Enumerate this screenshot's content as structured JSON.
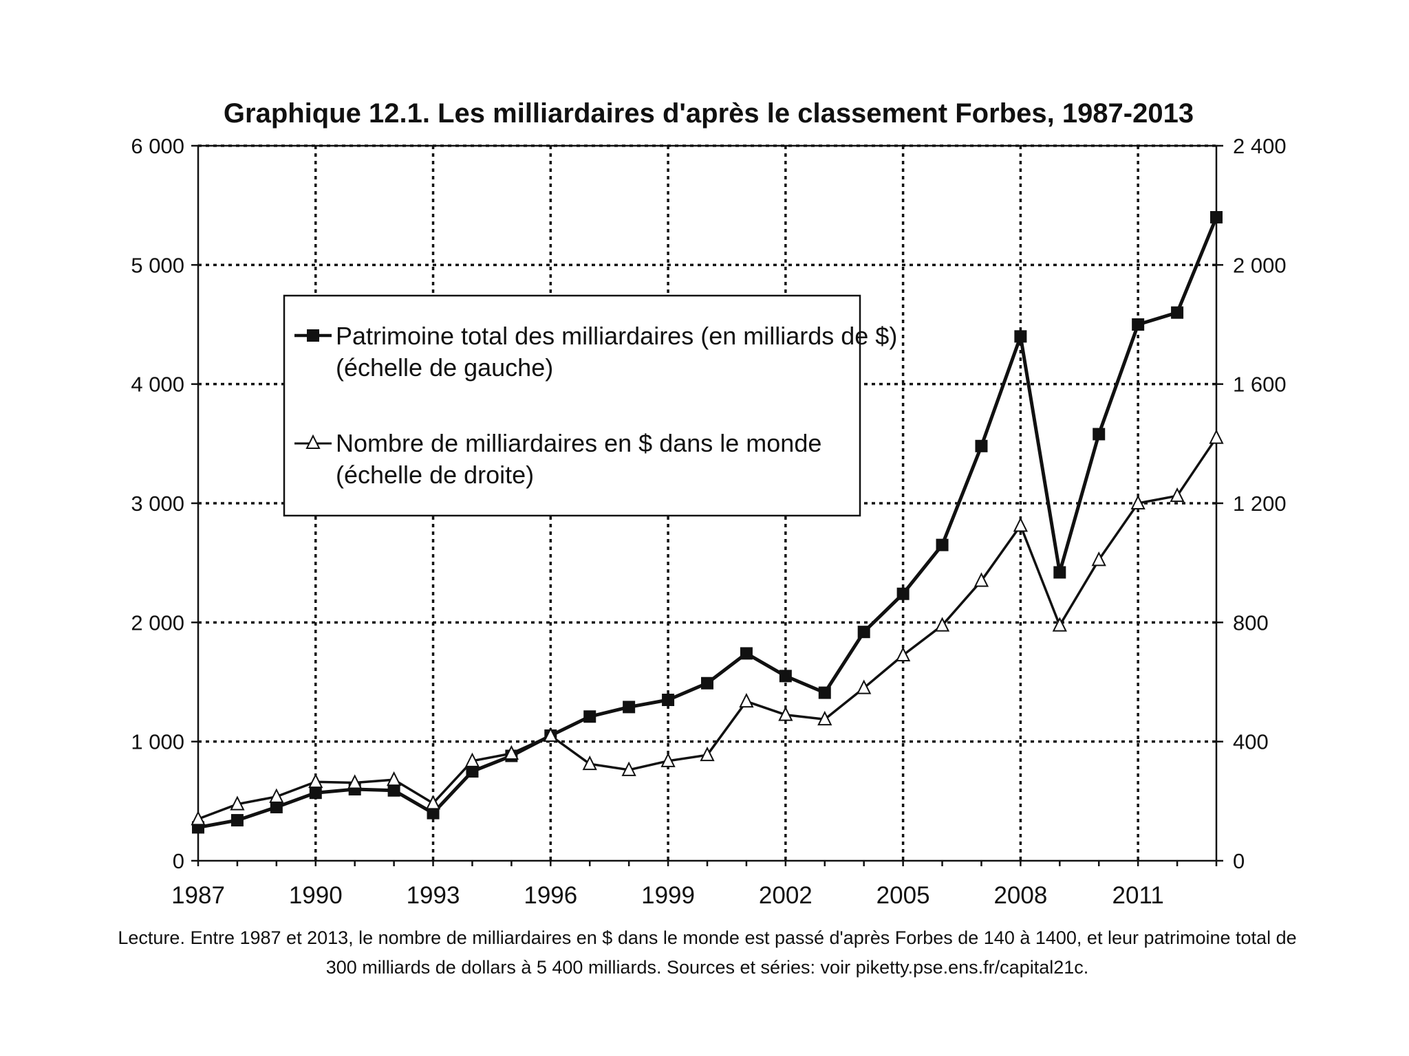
{
  "chart_data": {
    "type": "line",
    "title": "Graphique 12.1. Les milliardaires d'après le classement Forbes, 1987-2013",
    "x": [
      1987,
      1988,
      1989,
      1990,
      1991,
      1992,
      1993,
      1994,
      1995,
      1996,
      1997,
      1998,
      1999,
      2000,
      2001,
      2002,
      2003,
      2004,
      2005,
      2006,
      2007,
      2008,
      2009,
      2010,
      2011,
      2012,
      2013
    ],
    "x_ticks": [
      1987,
      1990,
      1993,
      1996,
      1999,
      2002,
      2005,
      2008,
      2011
    ],
    "x_tick_labels": [
      "1987",
      "1990",
      "1993",
      "1996",
      "1999",
      "2002",
      "2005",
      "2008",
      "2011"
    ],
    "y_left": {
      "ylim": [
        0,
        6000
      ],
      "ticks": [
        0,
        1000,
        2000,
        3000,
        4000,
        5000,
        6000
      ],
      "tick_labels": [
        "0",
        "1 000",
        "2 000",
        "3 000",
        "4 000",
        "5 000",
        "6 000"
      ]
    },
    "y_right": {
      "ylim": [
        0,
        2400
      ],
      "ticks": [
        0,
        400,
        800,
        1200,
        1600,
        2000,
        2400
      ],
      "tick_labels": [
        "0",
        "400",
        "800",
        "1 200",
        "1 600",
        "2 000",
        "2 400"
      ]
    },
    "grid": true,
    "legend_position": "upper-left",
    "series": [
      {
        "name": "Patrimoine total des milliardaires (en milliards de $)",
        "name_line2": "(échelle de gauche)",
        "axis": "left",
        "marker": "filled-square",
        "values": [
          280,
          340,
          450,
          570,
          600,
          590,
          400,
          750,
          880,
          1050,
          1210,
          1290,
          1350,
          1490,
          1740,
          1550,
          1410,
          1920,
          2240,
          2650,
          3480,
          4400,
          2420,
          3580,
          4500,
          4600,
          5400
        ]
      },
      {
        "name": "Nombre de milliardaires en $ dans le monde",
        "name_line2": "(échelle de droite)",
        "axis": "right",
        "marker": "open-triangle",
        "values": [
          140,
          190,
          215,
          265,
          262,
          272,
          193,
          335,
          360,
          420,
          325,
          305,
          335,
          355,
          535,
          490,
          475,
          580,
          690,
          790,
          940,
          1125,
          790,
          1010,
          1200,
          1225,
          1420
        ]
      }
    ],
    "caption_line1": "Lecture. Entre 1987 et 2013, le nombre de milliardaires en $ dans le monde est passé d'après Forbes de 140 à 1400, et leur patrimoine total de",
    "caption_line2": "300 milliards de dollars à 5 400 milliards. Sources et séries: voir piketty.pse.ens.fr/capital21c."
  }
}
